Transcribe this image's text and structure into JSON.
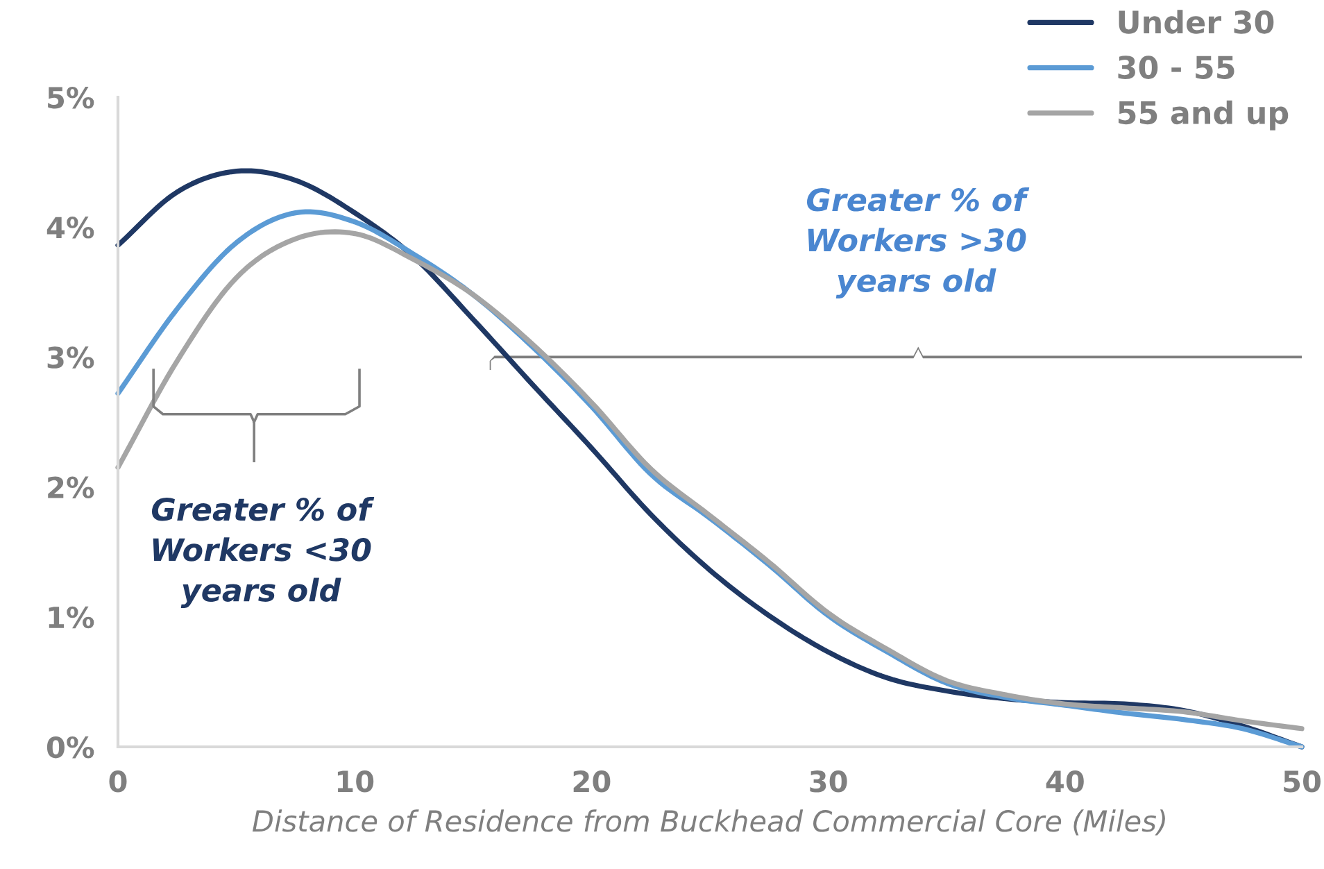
{
  "chart_data": {
    "type": "line",
    "xlabel": "Distance of Residence from Buckhead Commercial Core (Miles)",
    "xlim": [
      0,
      50
    ],
    "xticks": [
      0,
      10,
      20,
      30,
      40,
      50
    ],
    "ylim": [
      0,
      5
    ],
    "yticks": [
      {
        "value": 0,
        "label": "0%"
      },
      {
        "value": 1,
        "label": "1%"
      },
      {
        "value": 2,
        "label": "2%"
      },
      {
        "value": 3,
        "label": "3%"
      },
      {
        "value": 4,
        "label": "4%"
      },
      {
        "value": 5,
        "label": "5%"
      }
    ],
    "grid": false,
    "legend": "top right",
    "marker": "none",
    "line_style": "solid",
    "x": [
      0,
      2.5,
      5,
      7.5,
      10,
      12.5,
      15,
      17.5,
      20,
      22.5,
      25,
      27.5,
      30,
      32.5,
      35,
      37.5,
      40,
      42.5,
      45,
      47.5,
      50
    ],
    "series": [
      {
        "name": "Under 30",
        "color": "#1f3864",
        "values": [
          3.86,
          4.27,
          4.43,
          4.36,
          4.11,
          3.77,
          3.29,
          2.79,
          2.3,
          1.79,
          1.36,
          1.01,
          0.73,
          0.53,
          0.43,
          0.37,
          0.34,
          0.33,
          0.28,
          0.16,
          0
        ]
      },
      {
        "name": "30 - 55",
        "color": "#5b9bd5",
        "values": [
          2.72,
          3.37,
          3.88,
          4.11,
          4.04,
          3.79,
          3.48,
          3.08,
          2.62,
          2.1,
          1.76,
          1.4,
          1.01,
          0.73,
          0.49,
          0.38,
          0.32,
          0.26,
          0.21,
          0.14,
          0
        ]
      },
      {
        "name": "55 and up",
        "color": "#a5a5a5",
        "values": [
          2.15,
          2.97,
          3.61,
          3.91,
          3.95,
          3.75,
          3.48,
          3.1,
          2.65,
          2.14,
          1.78,
          1.42,
          1.03,
          0.75,
          0.51,
          0.4,
          0.33,
          0.3,
          0.27,
          0.2,
          0.14
        ]
      }
    ],
    "annotations": [
      "Greater % of\nWorkers <30\nyears old",
      "Greater % of\nWorkers >30\nyears old"
    ]
  }
}
